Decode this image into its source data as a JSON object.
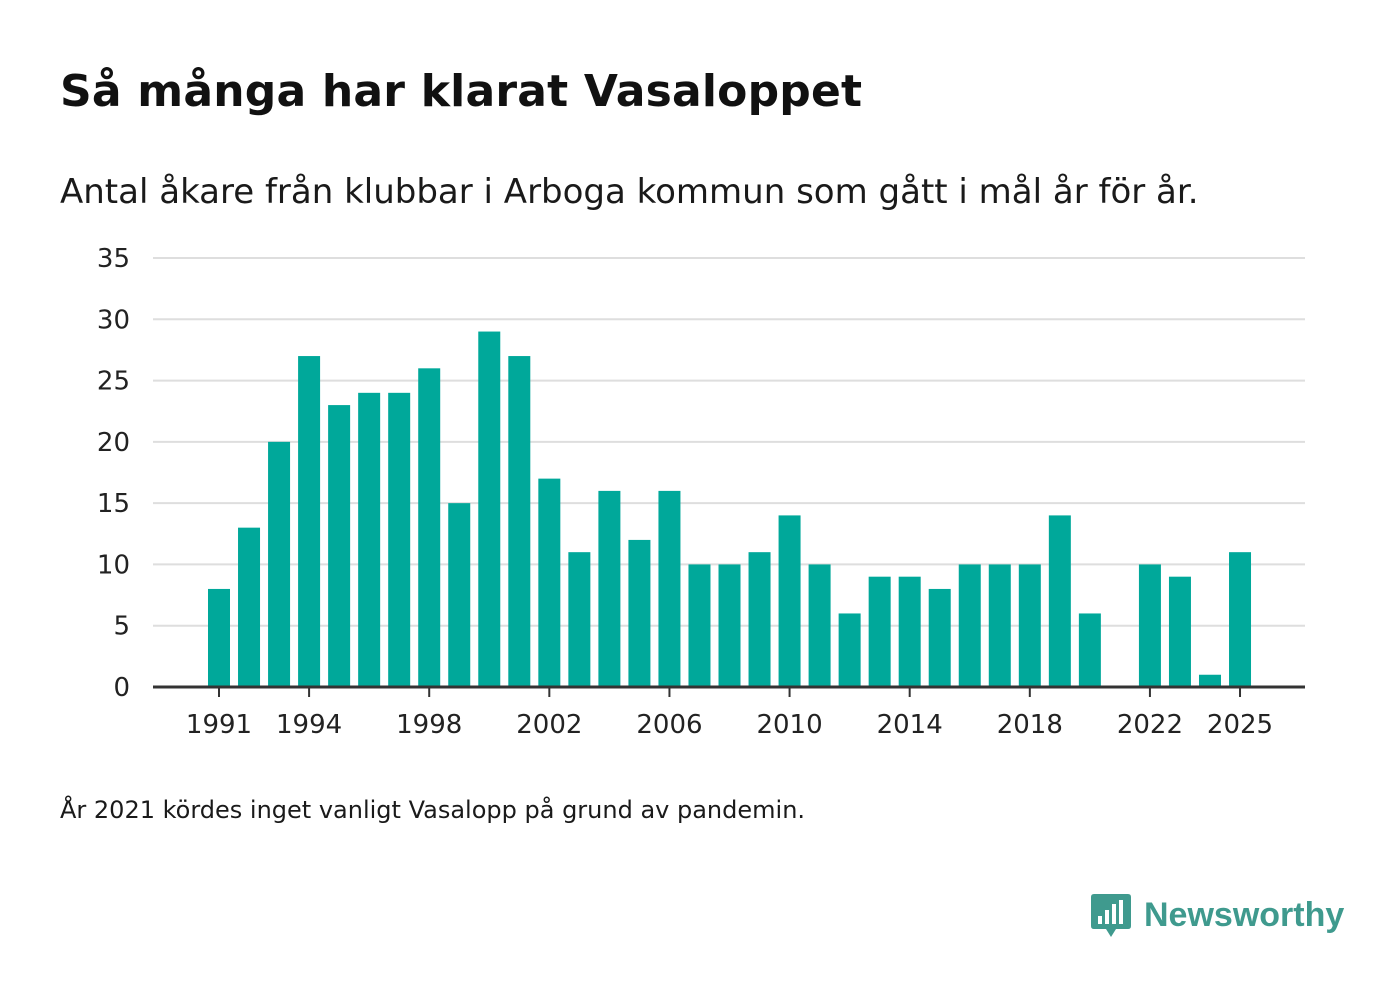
{
  "header": {
    "title": "Så många har klarat Vasaloppet",
    "subtitle": "Antal åkare från klubbar i Arboga kommun som gått i mål år för år."
  },
  "footer": {
    "note": "År 2021 kördes inget vanligt Vasalopp på grund av pandemin.",
    "brand": "Newsworthy",
    "brand_icon": "bar-chart-speech-bubble-icon"
  },
  "colors": {
    "bar": "#00a89a",
    "grid": "#dedede",
    "axis": "#333333",
    "brand": "#3f9a8e"
  },
  "chart_data": {
    "type": "bar",
    "title": "Så många har klarat Vasaloppet",
    "subtitle": "Antal åkare från klubbar i Arboga kommun som gått i mål år för år.",
    "xlabel": "",
    "ylabel": "",
    "categories": [
      1991,
      1992,
      1993,
      1994,
      1995,
      1996,
      1997,
      1998,
      1999,
      2000,
      2001,
      2002,
      2003,
      2004,
      2005,
      2006,
      2007,
      2008,
      2009,
      2010,
      2011,
      2012,
      2013,
      2014,
      2015,
      2016,
      2017,
      2018,
      2019,
      2020,
      2021,
      2022,
      2023,
      2024,
      2025
    ],
    "values": [
      8,
      13,
      20,
      27,
      23,
      24,
      24,
      26,
      15,
      29,
      27,
      17,
      11,
      16,
      12,
      16,
      10,
      10,
      11,
      14,
      10,
      6,
      9,
      9,
      8,
      10,
      10,
      10,
      14,
      6,
      null,
      10,
      9,
      1,
      11
    ],
    "ylim": [
      0,
      35
    ],
    "yticks": [
      0,
      5,
      10,
      15,
      20,
      25,
      30,
      35
    ],
    "xticks": [
      1991,
      1994,
      1998,
      2002,
      2006,
      2010,
      2014,
      2018,
      2022,
      2025
    ],
    "grid": true
  }
}
